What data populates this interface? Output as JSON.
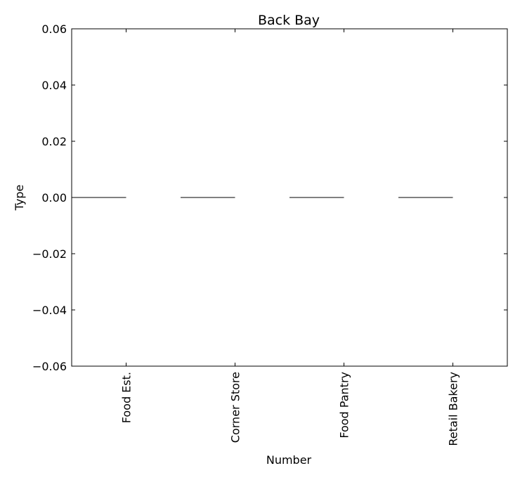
{
  "chart_data": {
    "type": "bar",
    "title": "Back Bay",
    "xlabel": "Number",
    "ylabel": "Type",
    "categories": [
      "Food Est.",
      "Corner Store",
      "Food Pantry",
      "Retail Bakery"
    ],
    "values": [
      0,
      0,
      0,
      0
    ],
    "ylim": [
      -0.06,
      0.06
    ],
    "yticks": [
      0.06,
      0.04,
      0.02,
      0.0,
      -0.02,
      -0.04,
      -0.06
    ],
    "ytick_labels": [
      "0.06",
      "0.04",
      "0.02",
      "0.00",
      "−0.02",
      "−0.04",
      "−0.06"
    ],
    "grid": false,
    "legend": "none"
  },
  "colors": {
    "axis": "#000000",
    "bar_edge": "#000000",
    "background": "#ffffff"
  }
}
